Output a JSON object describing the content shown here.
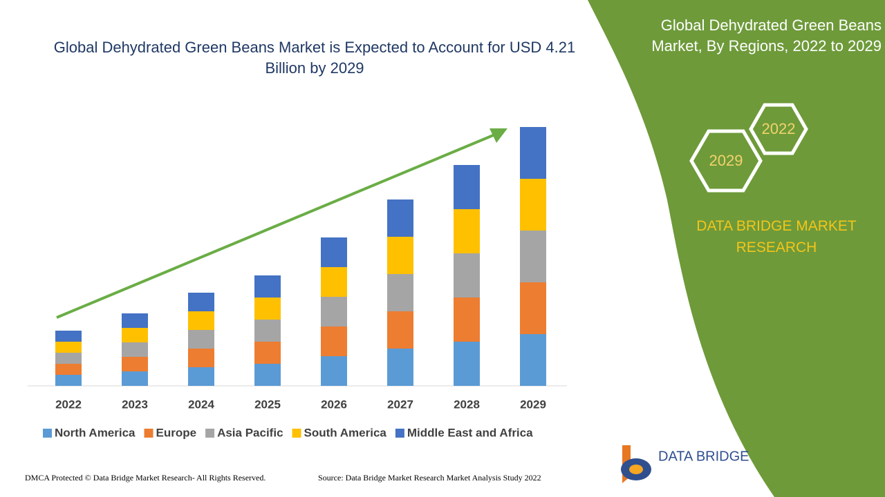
{
  "chart_data": {
    "type": "stacked_bar",
    "title": "Global Dehydrated Green Beans Market is Expected to Account for USD 4.21 Billion by 2029",
    "categories": [
      "2022",
      "2023",
      "2024",
      "2025",
      "2026",
      "2027",
      "2028",
      "2029"
    ],
    "series": [
      {
        "name": "North America",
        "color": "#5b9bd5",
        "values": [
          16,
          21,
          27,
          32,
          43,
          54,
          64,
          75
        ]
      },
      {
        "name": "Europe",
        "color": "#ed7d31",
        "values": [
          16,
          21,
          27,
          32,
          43,
          54,
          64,
          75
        ]
      },
      {
        "name": "Asia Pacific",
        "color": "#a5a5a5",
        "values": [
          16,
          21,
          27,
          32,
          43,
          54,
          64,
          75
        ]
      },
      {
        "name": "South America",
        "color": "#ffc000",
        "values": [
          16,
          21,
          27,
          32,
          43,
          54,
          64,
          75
        ]
      },
      {
        "name": "Middle East and Africa",
        "color": "#4472c4",
        "values": [
          16,
          21,
          27,
          32,
          43,
          54,
          64,
          75
        ]
      }
    ],
    "ylim": [
      0,
      400
    ],
    "legend": "bottom"
  },
  "side_panel": {
    "title": "Global Dehydrated Green Beans Market, By Regions, 2022 to 2029",
    "hexagons": [
      "2022",
      "2029"
    ],
    "brand": "DATA BRIDGE MARKET RESEARCH"
  },
  "logo": {
    "text": "DATA BRIDGE"
  },
  "footer": {
    "copyright": "DMCA Protected © Data Bridge Market Research- All Rights Reserved.",
    "source": "Source: Data Bridge Market Research Market Analysis Study 2022"
  }
}
